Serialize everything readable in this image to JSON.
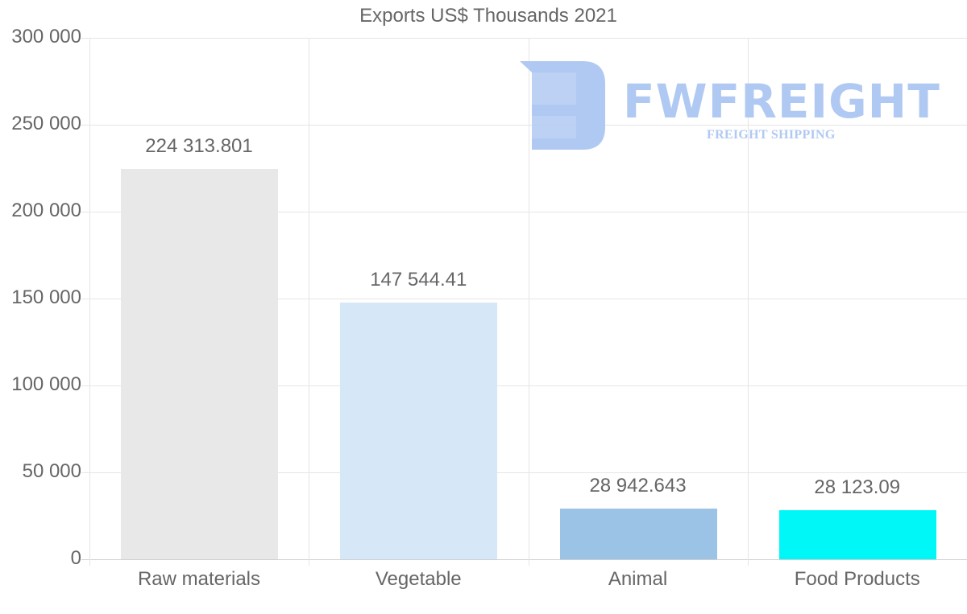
{
  "chart_data": {
    "type": "bar",
    "title": "Exports US$ Thousands 2021",
    "xlabel": "",
    "ylabel": "",
    "categories": [
      "Raw materials",
      "Vegetable",
      "Animal",
      "Food Products"
    ],
    "values": [
      224313.801,
      147544.41,
      28942.643,
      28123.09
    ],
    "value_labels": [
      "224 313.801",
      "147 544.41",
      "28 942.643",
      "28 123.09"
    ],
    "colors": [
      "#e8e8e8",
      "#d6e7f8",
      "#9bc3e6",
      "#00f7f7"
    ],
    "ylim": [
      0,
      300000
    ],
    "yticks": [
      0,
      50000,
      100000,
      150000,
      200000,
      250000,
      300000
    ],
    "ytick_labels": [
      "0",
      "50 000",
      "100 000",
      "150 000",
      "200 000",
      "250 000",
      "300 000"
    ],
    "grid": true,
    "legend": null
  },
  "watermark": {
    "brand": "FWFREIGHT",
    "tagline": "FREIGHT SHIPPING",
    "color": "#b0c9f2"
  }
}
